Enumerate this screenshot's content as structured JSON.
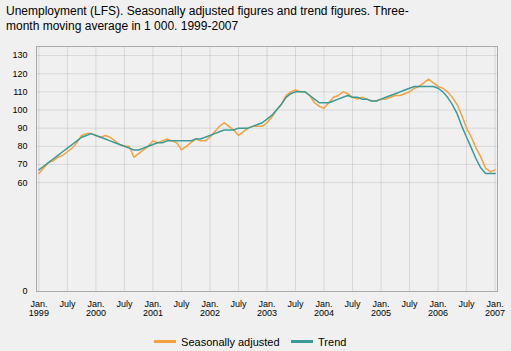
{
  "chart_data": {
    "type": "line",
    "title": "Unemployment (LFS). Seasonally adjusted figures and trend figures. Three-\nmonth moving average in 1 000. 1999-2007",
    "categories": [
      "Jan.\n1999",
      null,
      null,
      null,
      null,
      null,
      "July",
      null,
      null,
      null,
      null,
      null,
      "Jan.\n2000",
      null,
      null,
      null,
      null,
      null,
      "July",
      null,
      null,
      null,
      null,
      null,
      "Jan.\n2001",
      null,
      null,
      null,
      null,
      null,
      "July",
      null,
      null,
      null,
      null,
      null,
      "Jan.\n2002",
      null,
      null,
      null,
      null,
      null,
      "July",
      null,
      null,
      null,
      null,
      null,
      "Jan.\n2003",
      null,
      null,
      null,
      null,
      null,
      "July",
      null,
      null,
      null,
      null,
      null,
      "Jan.\n2004",
      null,
      null,
      null,
      null,
      null,
      "July",
      null,
      null,
      null,
      null,
      null,
      "Jan.\n2005",
      null,
      null,
      null,
      null,
      null,
      "July",
      null,
      null,
      null,
      null,
      null,
      "Jan.\n2006",
      null,
      null,
      null,
      null,
      null,
      "July",
      null,
      null,
      null,
      null,
      null,
      "Jan.\n2007"
    ],
    "series": [
      {
        "name": "Seasonally adjusted",
        "color": "#f5a040",
        "values": [
          65,
          68,
          71,
          72,
          74,
          75,
          77,
          79,
          82,
          86,
          87,
          87,
          86,
          85,
          86,
          85,
          83,
          81,
          80,
          80,
          74,
          76,
          78,
          80,
          83,
          82,
          83,
          84,
          83,
          82,
          78,
          80,
          82,
          84,
          83,
          83,
          85,
          88,
          91,
          93,
          91,
          89,
          86,
          88,
          90,
          91,
          91,
          91,
          93,
          96,
          100,
          103,
          108,
          110,
          111,
          110,
          110,
          108,
          104,
          102,
          101,
          104,
          107,
          108,
          110,
          109,
          107,
          106,
          107,
          106,
          105,
          105,
          106,
          106,
          107,
          108,
          108,
          109,
          110,
          112,
          113,
          115,
          117,
          115,
          113,
          112,
          110,
          107,
          103,
          97,
          90,
          85,
          79,
          74,
          68,
          66,
          67
        ]
      },
      {
        "name": "Trend",
        "color": "#3a9b96",
        "values": [
          67,
          69,
          71,
          73,
          75,
          77,
          79,
          81,
          83,
          85,
          86,
          87,
          86,
          85,
          84,
          83,
          82,
          81,
          80,
          79,
          78,
          78,
          79,
          80,
          81,
          82,
          82,
          83,
          83,
          83,
          83,
          83,
          83,
          84,
          84,
          85,
          86,
          87,
          88,
          89,
          89,
          89,
          90,
          90,
          90,
          91,
          92,
          93,
          95,
          97,
          100,
          103,
          107,
          109,
          110,
          110,
          110,
          108,
          106,
          104,
          104,
          104,
          105,
          106,
          107,
          108,
          107,
          107,
          106,
          106,
          105,
          105,
          106,
          107,
          108,
          109,
          110,
          111,
          112,
          113,
          113,
          113,
          113,
          113,
          112,
          110,
          107,
          103,
          98,
          91,
          85,
          79,
          73,
          68,
          65,
          65,
          65
        ]
      }
    ],
    "ylim": [
      0,
      135
    ],
    "yticks": [
      0,
      60,
      70,
      80,
      90,
      100,
      110,
      120,
      130
    ],
    "grid": true,
    "legend": "bottom"
  }
}
